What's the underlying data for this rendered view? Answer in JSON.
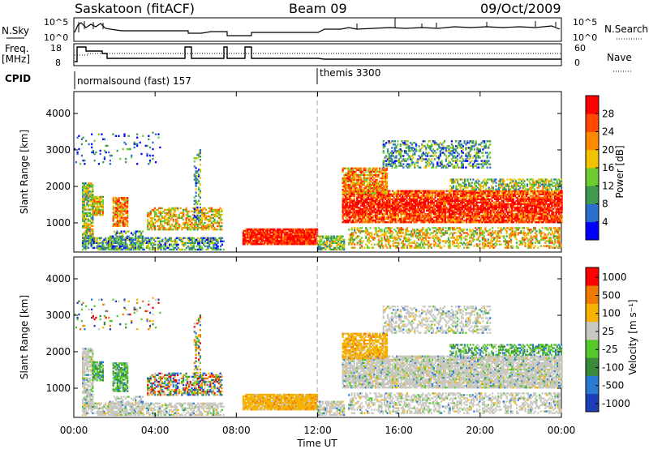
{
  "header": {
    "station": "Saskatoon (fitACF)",
    "beam": "Beam 09",
    "date": "09/Oct/2009"
  },
  "panels": {
    "nsky_label": "N.Sky",
    "nsky_ticks": [
      "10^5",
      "10^0"
    ],
    "nsearch_label": "N.Search",
    "nsearch_ticks": [
      "10^5",
      "10^0"
    ],
    "freq_label": "Freq.",
    "freq_unit": "[MHz]",
    "freq_ticks": [
      "18",
      "8"
    ],
    "nave_label": "Nave",
    "nave_ticks": [
      "60",
      "0"
    ],
    "cpid_label": "CPID",
    "cpid_1": "normalsound (fast) 157",
    "cpid_2": "themis 3300"
  },
  "chart_data": [
    {
      "type": "heatmap",
      "name": "power",
      "ylabel": "Slant Range [km]",
      "yticks": [
        "1000",
        "2000",
        "3000",
        "4000"
      ],
      "ylim": [
        200,
        4600
      ],
      "colorbar_label": "Power [dB]",
      "colorbar_ticks": [
        "4",
        "8",
        "12",
        "16",
        "20",
        "24",
        "28"
      ],
      "colors": [
        "#0000ff",
        "#2a6ecb",
        "#3e9a4f",
        "#6dcc2e",
        "#f2c200",
        "#ff8a00",
        "#ff4800",
        "#ff0000"
      ],
      "grid": false
    },
    {
      "type": "heatmap",
      "name": "velocity",
      "ylabel": "Slant Range [km]",
      "yticks": [
        "1000",
        "2000",
        "3000",
        "4000"
      ],
      "ylim": [
        200,
        4600
      ],
      "colorbar_label": "Velocity [m s⁻¹]",
      "colorbar_ticks": [
        "1000",
        "500",
        "100",
        "25",
        "-25",
        "-100",
        "-500",
        "-1000"
      ],
      "colors": [
        "#1c3fb8",
        "#2a7ad4",
        "#3a8a3a",
        "#55c82a",
        "#c8c8c0",
        "#f5b300",
        "#f07a00",
        "#ff0000"
      ],
      "grid": false
    }
  ],
  "xaxis": {
    "label": "Time UT",
    "ticks": [
      "00:00",
      "04:00",
      "08:00",
      "12:00",
      "16:00",
      "20:00",
      "00:00"
    ]
  }
}
